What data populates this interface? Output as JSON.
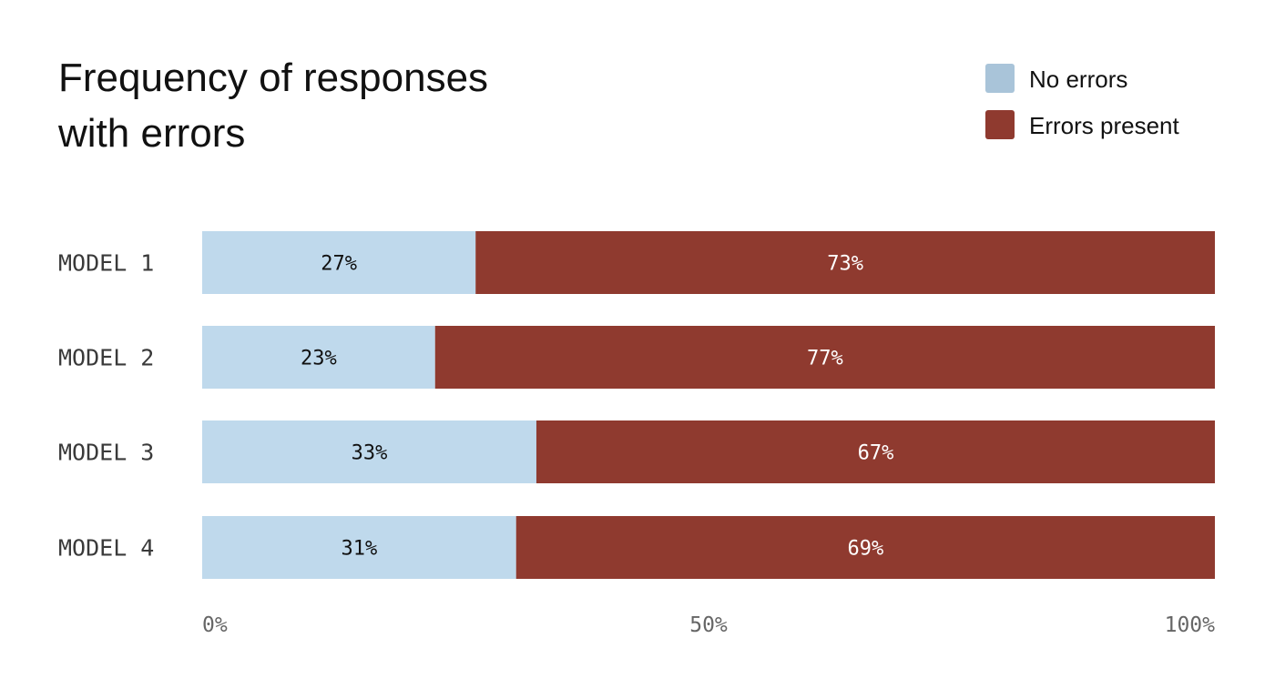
{
  "chart_data": {
    "type": "bar",
    "orientation": "horizontal",
    "stacked": true,
    "title": [
      "Frequency of responses",
      "with errors"
    ],
    "categories": [
      "MODEL 1",
      "MODEL 2",
      "MODEL 3",
      "MODEL 4"
    ],
    "series": [
      {
        "name": "No errors",
        "values": [
          27,
          23,
          33,
          31
        ],
        "labels": [
          "27%",
          "23%",
          "33%",
          "31%"
        ],
        "color": "#bfd9ec",
        "legend_color": "#a9c4d9",
        "label_color": "#111111"
      },
      {
        "name": "Errors present",
        "values": [
          73,
          77,
          67,
          69
        ],
        "labels": [
          "73%",
          "77%",
          "67%",
          "69%"
        ],
        "color": "#8f3a2f",
        "legend_color": "#8f3a2f",
        "label_color": "#ffffff"
      }
    ],
    "xlim": [
      0,
      100
    ],
    "x_ticks": [
      0,
      50,
      100
    ],
    "x_tick_labels": [
      "0%",
      "50%",
      "100%"
    ],
    "xlabel": "",
    "ylabel": "",
    "grid": false,
    "legend_position": "top-right"
  }
}
